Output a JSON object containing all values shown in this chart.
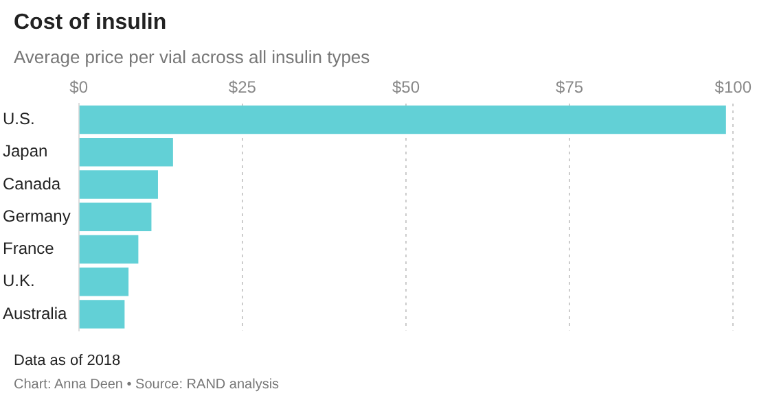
{
  "chart_data": {
    "type": "bar",
    "orientation": "horizontal",
    "title": "Cost of insulin",
    "subtitle": "Average price per vial across all insulin types",
    "categories": [
      "U.S.",
      "Japan",
      "Canada",
      "Germany",
      "France",
      "U.K.",
      "Australia"
    ],
    "values": [
      98.9,
      14.4,
      12.1,
      11.1,
      9.1,
      7.6,
      7.0
    ],
    "color": "#62d0d6",
    "xlim": [
      0,
      100
    ],
    "xticks": [
      {
        "value": 0,
        "label": "$0"
      },
      {
        "value": 25,
        "label": "$25"
      },
      {
        "value": 50,
        "label": "$50"
      },
      {
        "value": 75,
        "label": "$75"
      },
      {
        "value": 100,
        "label": "$100"
      }
    ],
    "grid": "x",
    "annotations": [
      "Data as of 2018",
      "Chart: Anna Deen • Source: RAND analysis"
    ]
  }
}
